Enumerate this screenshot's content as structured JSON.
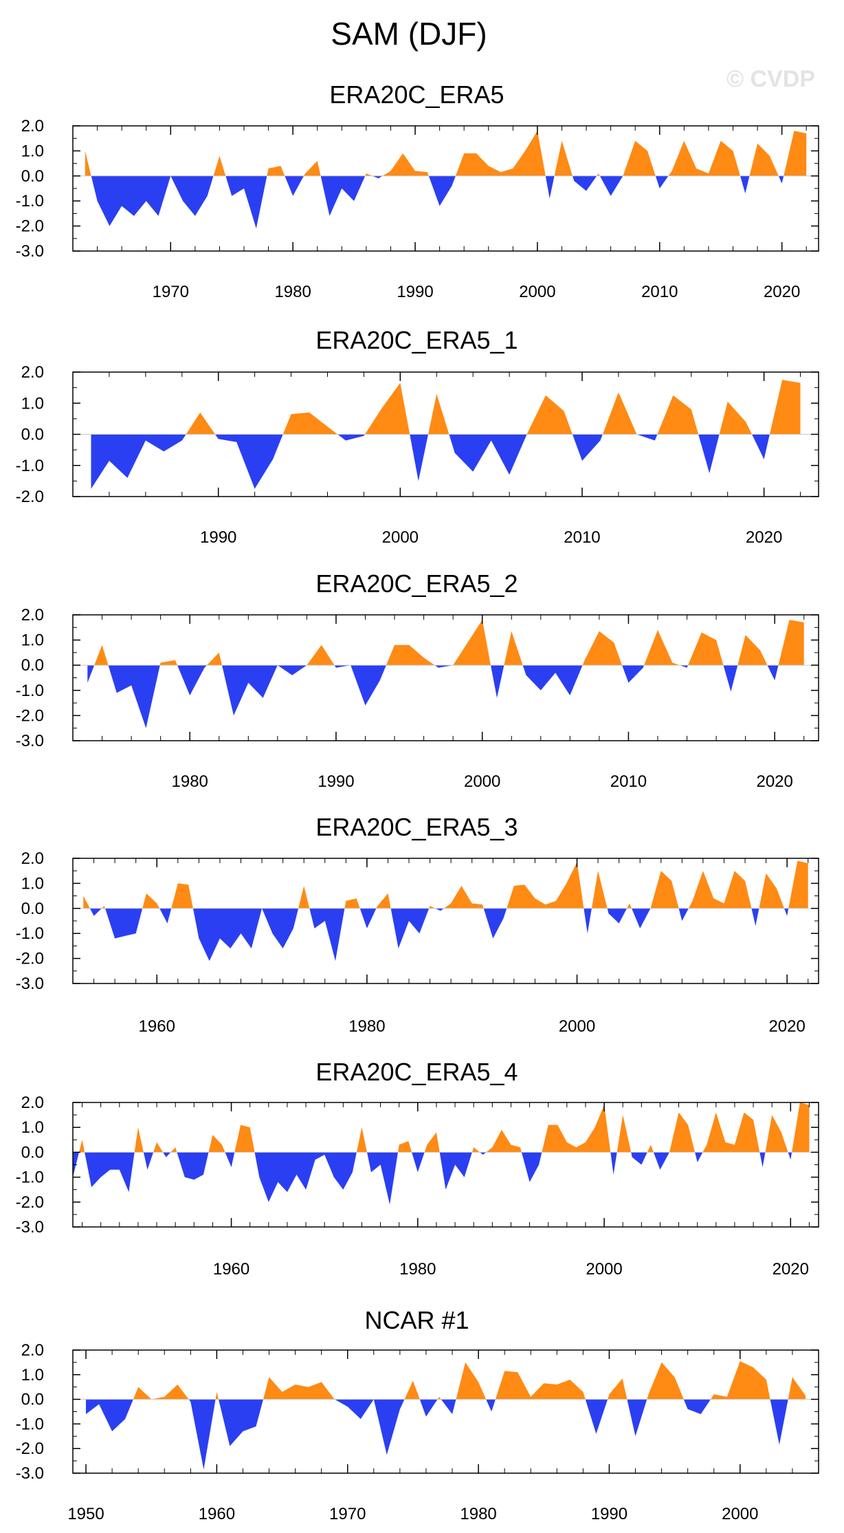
{
  "main_title": "SAM (DJF)",
  "watermark": "© CVDP",
  "colors": {
    "positive": "#ff8a14",
    "negative": "#2b3ff2",
    "frame": "#000000"
  },
  "chart_data": [
    {
      "type": "area",
      "title": "ERA20C_ERA5",
      "xlim": [
        1962,
        2023
      ],
      "ylim": [
        -3,
        2
      ],
      "yticks": [
        2,
        1,
        0,
        -1,
        -2,
        -3
      ],
      "ytick_labels": [
        "2.0",
        "1.0",
        "0.0",
        "-1.0",
        "-2.0",
        "-3.0"
      ],
      "xticks": [
        1970,
        1980,
        1990,
        2000,
        2010,
        2020
      ],
      "x_start": 1963,
      "values": [
        1.0,
        -1.0,
        -2.0,
        -1.2,
        -1.6,
        -1.0,
        -1.6,
        0.0,
        -1.0,
        -1.6,
        -0.8,
        0.8,
        -0.8,
        -0.5,
        -2.1,
        0.3,
        0.4,
        -0.8,
        0.1,
        0.6,
        -1.6,
        -0.5,
        -1.0,
        0.1,
        -0.1,
        0.2,
        0.9,
        0.2,
        0.15,
        -1.2,
        -0.4,
        0.9,
        0.9,
        0.4,
        0.15,
        0.3,
        1.0,
        1.8,
        -0.9,
        1.4,
        -0.2,
        -0.6,
        0.1,
        -0.8,
        0.0,
        1.4,
        1.0,
        -0.5,
        0.2,
        1.4,
        0.3,
        0.1,
        1.4,
        1.0,
        -0.7,
        1.3,
        0.8,
        -0.3,
        1.8,
        1.7
      ]
    },
    {
      "type": "area",
      "title": "ERA20C_ERA5_1",
      "xlim": [
        1982,
        2023
      ],
      "ylim": [
        -2,
        2
      ],
      "yticks": [
        2,
        1,
        0,
        -1,
        -2
      ],
      "ytick_labels": [
        "2.0",
        "1.0",
        "0.0",
        "-1.0",
        "-2.0"
      ],
      "xticks": [
        1990,
        2000,
        2010,
        2020
      ],
      "x_start": 1983,
      "values": [
        -1.75,
        -0.85,
        -1.4,
        -0.2,
        -0.55,
        -0.2,
        0.7,
        -0.15,
        -0.25,
        -1.75,
        -0.8,
        0.65,
        0.7,
        0.25,
        -0.2,
        -0.05,
        0.85,
        1.65,
        -1.5,
        1.3,
        -0.6,
        -1.2,
        -0.2,
        -1.3,
        0.05,
        1.25,
        0.75,
        -0.85,
        -0.2,
        1.35,
        0.0,
        -0.2,
        1.25,
        0.8,
        -1.25,
        1.05,
        0.4,
        -0.8,
        1.75,
        1.65
      ]
    },
    {
      "type": "area",
      "title": "ERA20C_ERA5_2",
      "xlim": [
        1972,
        2023
      ],
      "ylim": [
        -3,
        2
      ],
      "yticks": [
        2,
        1,
        0,
        -1,
        -2,
        -3
      ],
      "ytick_labels": [
        "2.0",
        "1.0",
        "0.0",
        "-1.0",
        "-2.0",
        "-3.0"
      ],
      "xticks": [
        1980,
        1990,
        2000,
        2010,
        2020
      ],
      "x_start": 1973,
      "values": [
        -0.7,
        0.8,
        -1.1,
        -0.8,
        -2.5,
        0.1,
        0.2,
        -1.2,
        -0.1,
        0.5,
        -2.0,
        -0.7,
        -1.3,
        0.0,
        -0.4,
        0.0,
        0.8,
        -0.1,
        0.0,
        -1.6,
        -0.6,
        0.8,
        0.8,
        0.3,
        -0.1,
        0.0,
        0.9,
        1.8,
        -1.3,
        1.35,
        -0.4,
        -1.0,
        -0.3,
        -1.2,
        0.2,
        1.35,
        0.9,
        -0.7,
        -0.1,
        1.4,
        0.1,
        -0.1,
        1.3,
        1.0,
        -1.05,
        1.2,
        0.6,
        -0.6,
        1.8,
        1.7
      ]
    },
    {
      "type": "area",
      "title": "ERA20C_ERA5_3",
      "xlim": [
        1952,
        2023
      ],
      "ylim": [
        -3,
        2
      ],
      "yticks": [
        2,
        1,
        0,
        -1,
        -2,
        -3
      ],
      "ytick_labels": [
        "2.0",
        "1.0",
        "0.0",
        "-1.0",
        "-2.0",
        "-3.0"
      ],
      "xticks": [
        1960,
        1980,
        2000,
        2020
      ],
      "x_start": 1953,
      "values": [
        0.5,
        -0.3,
        0.1,
        -1.2,
        -1.1,
        -1.0,
        0.6,
        0.2,
        -0.6,
        1.0,
        0.95,
        -1.2,
        -2.1,
        -1.2,
        -1.6,
        -1.0,
        -1.6,
        0.0,
        -1.0,
        -1.6,
        -0.8,
        0.9,
        -0.8,
        -0.5,
        -2.1,
        0.3,
        0.4,
        -0.8,
        0.1,
        0.6,
        -1.6,
        -0.5,
        -1.0,
        0.1,
        -0.1,
        0.2,
        0.9,
        0.2,
        0.15,
        -1.2,
        -0.4,
        0.9,
        0.95,
        0.4,
        0.15,
        0.3,
        1.0,
        1.85,
        -1.0,
        1.5,
        -0.2,
        -0.6,
        0.2,
        -0.8,
        0.0,
        1.5,
        1.1,
        -0.5,
        0.3,
        1.5,
        0.4,
        0.2,
        1.5,
        1.1,
        -0.7,
        1.4,
        0.8,
        -0.3,
        1.9,
        1.8
      ]
    },
    {
      "type": "area",
      "title": "ERA20C_ERA5_4",
      "xlim": [
        1943,
        2023
      ],
      "ylim": [
        -3,
        2
      ],
      "yticks": [
        2,
        1,
        0,
        -1,
        -2,
        -3
      ],
      "ytick_labels": [
        "2.0",
        "1.0",
        "0.0",
        "-1.0",
        "-2.0",
        "-3.0"
      ],
      "xticks": [
        1960,
        1980,
        2000,
        2020
      ],
      "x_start": 1943,
      "values": [
        -1.0,
        0.5,
        -1.4,
        -1.0,
        -0.7,
        -0.7,
        -1.6,
        1.0,
        -0.7,
        0.4,
        -0.2,
        0.2,
        -1.0,
        -1.1,
        -0.9,
        0.7,
        0.3,
        -0.6,
        1.1,
        1.0,
        -1.0,
        -2.0,
        -1.2,
        -1.6,
        -0.9,
        -1.5,
        -0.3,
        -0.1,
        -1.0,
        -1.5,
        -0.8,
        1.0,
        -0.8,
        -0.5,
        -2.1,
        0.3,
        0.45,
        -0.8,
        0.3,
        0.8,
        -1.5,
        -0.5,
        -1.0,
        0.2,
        -0.1,
        0.2,
        0.9,
        0.3,
        0.2,
        -1.2,
        -0.5,
        1.1,
        1.1,
        0.4,
        0.2,
        0.4,
        1.0,
        1.9,
        -0.9,
        1.5,
        -0.2,
        -0.5,
        0.3,
        -0.7,
        0.0,
        1.6,
        1.1,
        -0.4,
        0.3,
        1.6,
        0.4,
        0.3,
        1.6,
        1.3,
        -0.6,
        1.5,
        0.8,
        -0.3,
        2.0,
        1.9
      ]
    },
    {
      "type": "area",
      "title": "NCAR #1",
      "xlim": [
        1949,
        2006
      ],
      "ylim": [
        -3,
        2
      ],
      "yticks": [
        2,
        1,
        0,
        -1,
        -2,
        -3
      ],
      "ytick_labels": [
        "2.0",
        "1.0",
        "0.0",
        "-1.0",
        "-2.0",
        "-3.0"
      ],
      "xticks": [
        1950,
        1960,
        1970,
        1980,
        1990,
        2000
      ],
      "x_start": 1950,
      "values": [
        -0.6,
        -0.2,
        -1.3,
        -0.8,
        0.5,
        0.0,
        0.1,
        0.6,
        -0.1,
        -2.85,
        0.3,
        -1.9,
        -1.3,
        -1.1,
        0.9,
        0.3,
        0.6,
        0.5,
        0.7,
        0.0,
        -0.3,
        -0.8,
        0.0,
        -2.25,
        -0.4,
        0.75,
        -0.7,
        0.1,
        -0.6,
        1.5,
        0.7,
        -0.5,
        1.15,
        1.1,
        0.1,
        0.65,
        0.6,
        0.8,
        0.3,
        -1.4,
        0.2,
        0.85,
        -1.5,
        0.2,
        1.5,
        0.9,
        -0.4,
        -0.6,
        0.2,
        0.1,
        1.55,
        1.3,
        0.8,
        -1.85,
        0.9,
        0.15
      ]
    }
  ]
}
